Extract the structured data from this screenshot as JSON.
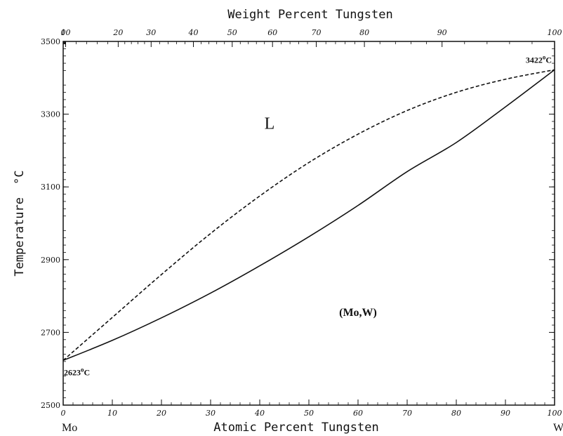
{
  "chart_data": {
    "type": "line",
    "xlabel_bottom": "Atomic Percent Tungsten",
    "xlabel_top": "Weight Percent Tungsten",
    "ylabel": "Temperature",
    "ylabel_unit": "°C",
    "xlim": [
      0,
      100
    ],
    "ylim": [
      2500,
      3500
    ],
    "x_ticks_bottom": [
      "0",
      "10",
      "20",
      "30",
      "40",
      "50",
      "60",
      "70",
      "80",
      "90",
      "100"
    ],
    "x_ticks_top": [
      "0",
      "10",
      "20",
      "30",
      "40",
      "50",
      "60",
      "70",
      "80",
      "90",
      "100"
    ],
    "x_ticks_top_at_atomic": [
      0,
      0.5,
      11.2,
      17.9,
      26.5,
      34.4,
      42.6,
      51.5,
      61.3,
      77.1,
      100
    ],
    "y_ticks": [
      "2500",
      "2700",
      "2900",
      "3100",
      "3300",
      "3500"
    ],
    "end_left": "Mo",
    "end_right": "W",
    "annotations": [
      {
        "name": "liquid-region-label",
        "text": "L",
        "x": 42,
        "y": 3260
      },
      {
        "name": "solid-region-label",
        "text": "(Mo,W)",
        "x": 60,
        "y": 2745
      },
      {
        "name": "mo-melting-point-label",
        "value": "2623",
        "unit": "C",
        "x": 0,
        "y": 2623
      },
      {
        "name": "w-melting-point-label",
        "value": "3422",
        "unit": "C",
        "x": 100,
        "y": 3422
      }
    ],
    "series": [
      {
        "style": "dashed",
        "x": [
          0,
          10,
          20,
          30,
          40,
          50,
          60,
          70,
          80,
          90,
          100
        ],
        "y": [
          2623,
          2741,
          2859,
          2972,
          3075,
          3167,
          3245,
          3310,
          3360,
          3396,
          3422
        ]
      },
      {
        "style": "solid",
        "x": [
          0,
          10,
          20,
          30,
          40,
          50,
          60,
          70,
          80,
          90,
          100
        ],
        "y": [
          2623,
          2678,
          2740,
          2808,
          2883,
          2963,
          3049,
          3142,
          3222,
          3320,
          3422
        ]
      }
    ]
  }
}
